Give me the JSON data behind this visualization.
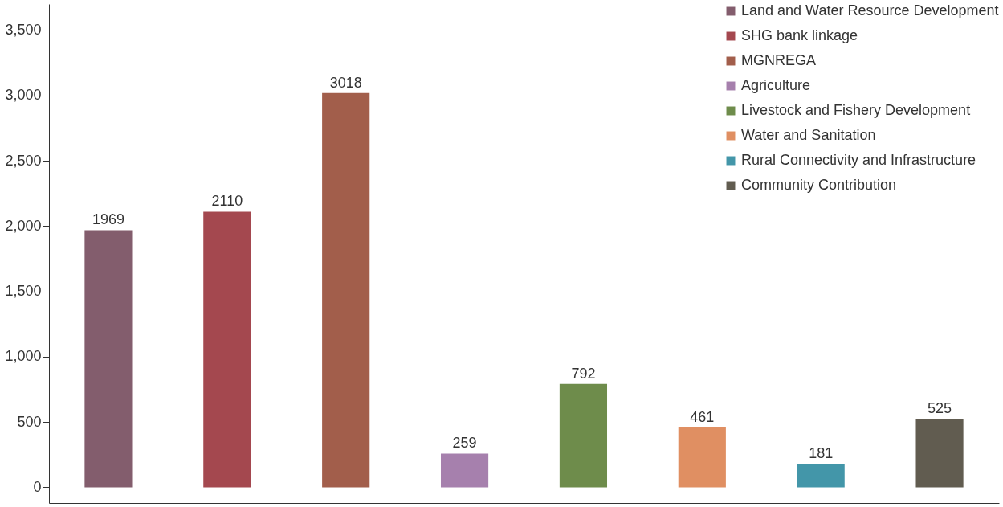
{
  "chart_data": {
    "type": "bar",
    "categories": [
      null,
      null,
      null,
      null,
      null,
      null,
      null,
      null
    ],
    "series": [
      {
        "name": "Land and Water Resource Development",
        "color": "#835d6d",
        "values": [
          1969,
          null,
          null,
          null,
          null,
          null,
          null,
          null
        ]
      },
      {
        "name": "SHG bank linkage",
        "color": "#a4484f",
        "values": [
          null,
          2110,
          null,
          null,
          null,
          null,
          null,
          null
        ]
      },
      {
        "name": "MGNREGA",
        "color": "#a25e4b",
        "values": [
          null,
          null,
          3018,
          null,
          null,
          null,
          null,
          null
        ]
      },
      {
        "name": "Agriculture",
        "color": "#a680ad",
        "values": [
          null,
          null,
          null,
          259,
          null,
          null,
          null,
          null
        ]
      },
      {
        "name": "Livestock and Fishery Development",
        "color": "#6e8c4b",
        "values": [
          null,
          null,
          null,
          null,
          792,
          null,
          null,
          null
        ]
      },
      {
        "name": "Water and Sanitation",
        "color": "#e08f62",
        "values": [
          null,
          null,
          null,
          null,
          null,
          461,
          null,
          null
        ]
      },
      {
        "name": "Rural Connectivity and Infrastructure",
        "color": "#4396a9",
        "values": [
          null,
          null,
          null,
          null,
          null,
          null,
          181,
          null
        ]
      },
      {
        "name": "Community Contribution",
        "color": "#615c50",
        "values": [
          null,
          null,
          null,
          null,
          null,
          null,
          null,
          525
        ]
      }
    ],
    "ylim": [
      -120,
      3700
    ],
    "yticks": [
      0,
      500,
      {
        "value": 1000,
        "label": "1,000"
      },
      {
        "value": 1500,
        "label": "1,500"
      },
      {
        "value": 2000,
        "label": "2,000"
      },
      {
        "value": 2500,
        "label": "2,500"
      },
      {
        "value": 3000,
        "label": "3,000"
      },
      {
        "value": 3500,
        "label": "3,500"
      }
    ],
    "data_labels": true,
    "legend": "top right",
    "grid": false
  }
}
